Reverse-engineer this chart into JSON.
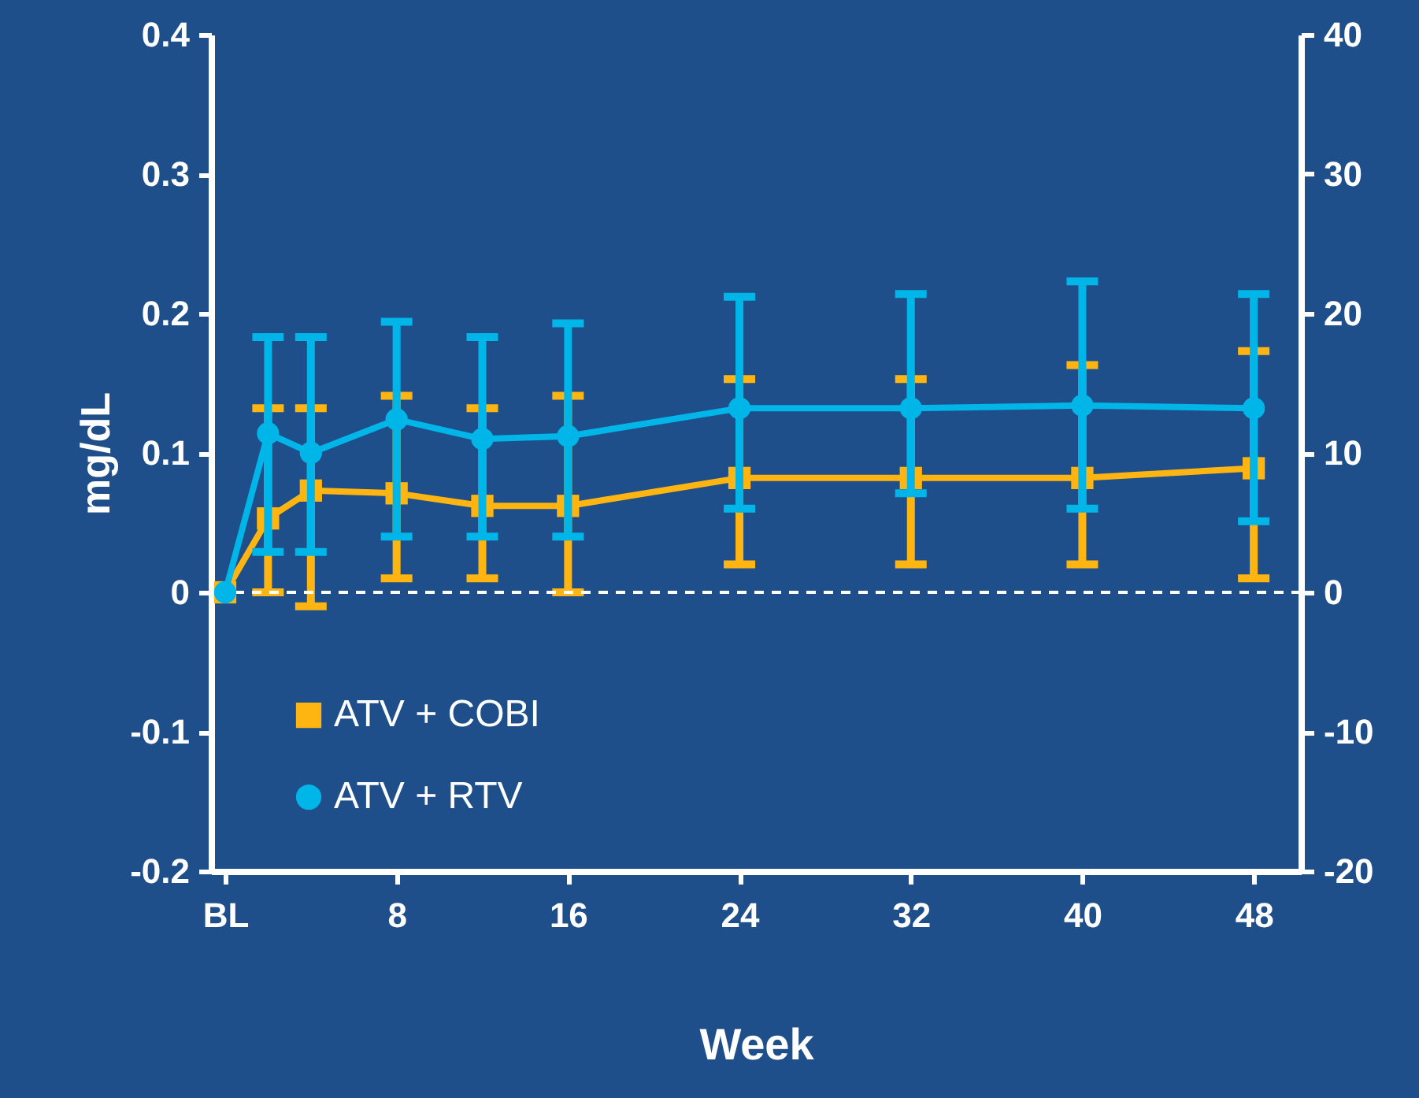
{
  "chart_data": {
    "type": "line",
    "xlabel": "Week",
    "ylabel": "mg/dL",
    "xlim": [
      -0.66,
      50.2
    ],
    "xticks": [
      {
        "value": 0,
        "label": "BL"
      },
      8,
      16,
      24,
      32,
      40,
      48
    ],
    "ylim": [
      -0.2,
      0.4
    ],
    "yticks": [
      -0.2,
      -0.1,
      0,
      0.1,
      0.2,
      0.3,
      0.4
    ],
    "y2lim": [
      -20,
      40
    ],
    "y2ticks": [
      -20,
      -10,
      0,
      10,
      20,
      30,
      40
    ],
    "grid": false,
    "legend": "bottom left",
    "ref_lines": [
      {
        "axis": "y",
        "value": 0,
        "color": "#ffffff",
        "line_style": "dashed"
      }
    ],
    "series": [
      {
        "name": "ATV + COBI",
        "color": "#ffb511",
        "marker": "square",
        "x": [
          0,
          2,
          4,
          8,
          12,
          16,
          24,
          32,
          40,
          48
        ],
        "values": [
          0,
          0.053,
          0.073,
          0.071,
          0.062,
          0.062,
          0.082,
          0.082,
          0.082,
          0.089
        ],
        "errors": [
          null,
          [
            0,
            0.132
          ],
          [
            -0.01,
            0.132
          ],
          [
            0.01,
            0.141
          ],
          [
            0.01,
            0.132
          ],
          [
            0,
            0.141
          ],
          [
            0.02,
            0.153
          ],
          [
            0.02,
            0.153
          ],
          [
            0.02,
            0.163
          ],
          [
            0.01,
            0.173
          ]
        ]
      },
      {
        "name": "ATV + RTV",
        "color": "#00b5e8",
        "marker": "circle",
        "axis": "y2",
        "x": [
          0,
          2,
          4,
          8,
          12,
          16,
          24,
          32,
          40,
          48
        ],
        "values": [
          0,
          11.4,
          10,
          12.4,
          11,
          11.2,
          13.2,
          13.2,
          13.4,
          13.2
        ],
        "errors": [
          null,
          [
            2.9,
            18.3
          ],
          [
            2.9,
            18.3
          ],
          [
            4,
            19.4
          ],
          [
            4,
            18.3
          ],
          [
            4,
            19.3
          ],
          [
            6,
            21.2
          ],
          [
            7.1,
            21.4
          ],
          [
            6,
            22.3
          ],
          [
            5.1,
            21.4
          ]
        ]
      }
    ]
  }
}
